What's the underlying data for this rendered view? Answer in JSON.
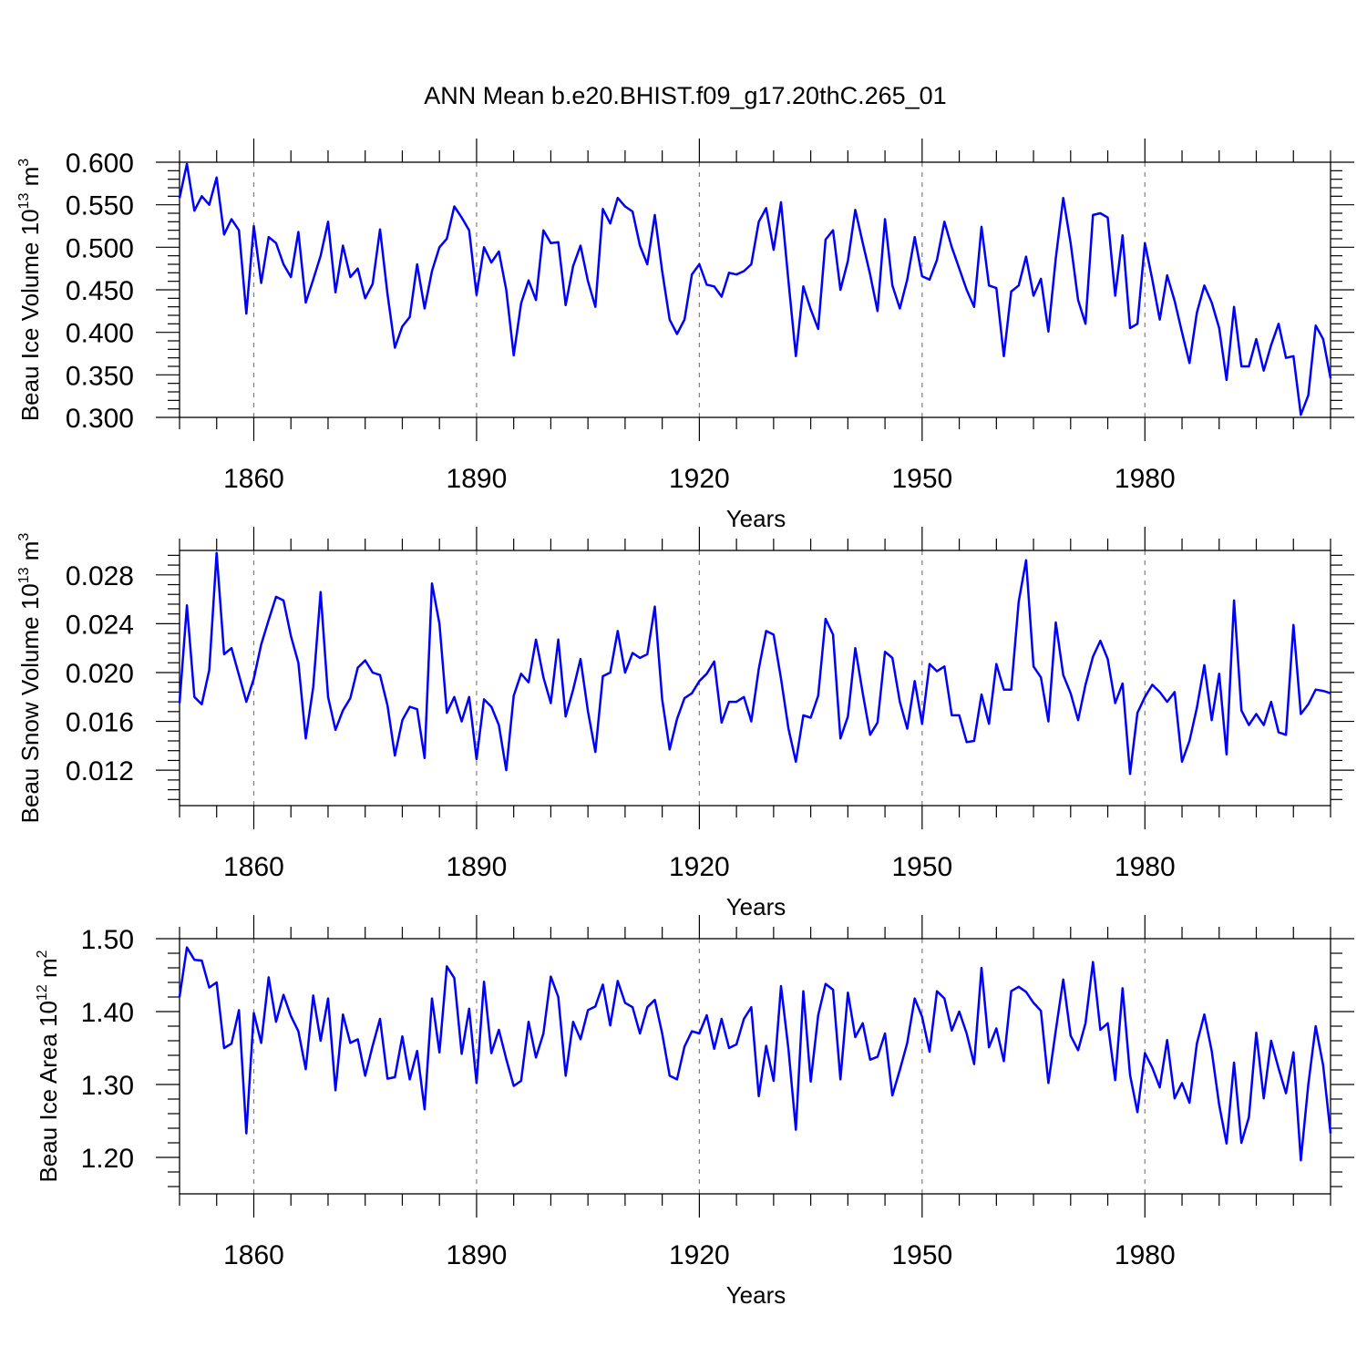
{
  "title": "ANN Mean b.e20.BHIST.f09_g17.20thC.265_01",
  "colors": {
    "series": "#0000ff",
    "axis": "#000000",
    "grid": "#7f7f7f"
  },
  "chart_data": [
    {
      "type": "line",
      "ylabel": "Beau Ice Volume 10",
      "ylabel_exp": "13",
      "ylabel_unit": " m",
      "ylabel_unit_exp": "3",
      "xlabel": "Years",
      "xlim": [
        1850,
        2005
      ],
      "ylim": [
        0.3,
        0.6
      ],
      "xticks": [
        1860,
        1890,
        1920,
        1950,
        1980
      ],
      "xtick_labels": [
        "1860",
        "1890",
        "1920",
        "1950",
        "1980"
      ],
      "yticks": [
        0.3,
        0.35,
        0.4,
        0.45,
        0.5,
        0.55,
        0.6
      ],
      "ytick_labels": [
        "0.300",
        "0.350",
        "0.400",
        "0.450",
        "0.500",
        "0.550",
        "0.600"
      ],
      "x_start": 1850,
      "values": [
        0.558,
        0.598,
        0.543,
        0.56,
        0.55,
        0.582,
        0.515,
        0.533,
        0.52,
        0.422,
        0.525,
        0.458,
        0.512,
        0.505,
        0.48,
        0.465,
        0.518,
        0.435,
        0.462,
        0.49,
        0.53,
        0.447,
        0.502,
        0.465,
        0.475,
        0.44,
        0.457,
        0.521,
        0.445,
        0.382,
        0.407,
        0.418,
        0.48,
        0.428,
        0.472,
        0.5,
        0.51,
        0.548,
        0.535,
        0.52,
        0.444,
        0.5,
        0.482,
        0.495,
        0.45,
        0.373,
        0.434,
        0.461,
        0.438,
        0.52,
        0.505,
        0.506,
        0.432,
        0.478,
        0.502,
        0.46,
        0.43,
        0.545,
        0.528,
        0.558,
        0.548,
        0.542,
        0.502,
        0.48,
        0.538,
        0.472,
        0.415,
        0.398,
        0.415,
        0.468,
        0.48,
        0.456,
        0.454,
        0.442,
        0.47,
        0.468,
        0.472,
        0.48,
        0.53,
        0.546,
        0.497,
        0.553,
        0.46,
        0.372,
        0.454,
        0.427,
        0.404,
        0.509,
        0.52,
        0.45,
        0.484,
        0.544,
        0.505,
        0.468,
        0.425,
        0.533,
        0.455,
        0.428,
        0.462,
        0.512,
        0.466,
        0.462,
        0.485,
        0.53,
        0.5,
        0.475,
        0.45,
        0.43,
        0.524,
        0.455,
        0.452,
        0.372,
        0.448,
        0.455,
        0.489,
        0.443,
        0.463,
        0.401,
        0.487,
        0.558,
        0.505,
        0.438,
        0.41,
        0.538,
        0.54,
        0.535,
        0.443,
        0.514,
        0.405,
        0.41,
        0.505,
        0.462,
        0.415,
        0.467,
        0.437,
        0.4,
        0.364,
        0.423,
        0.455,
        0.435,
        0.405,
        0.344,
        0.43,
        0.36,
        0.36,
        0.392,
        0.355,
        0.385,
        0.41,
        0.37,
        0.372,
        0.303,
        0.326,
        0.408,
        0.392,
        0.346
      ]
    },
    {
      "type": "line",
      "ylabel": "Beau Snow Volume 10",
      "ylabel_exp": "13",
      "ylabel_unit": " m",
      "ylabel_unit_exp": "3",
      "xlabel": "Years",
      "xlim": [
        1850,
        2005
      ],
      "ylim": [
        0.0091,
        0.03
      ],
      "xticks": [
        1860,
        1890,
        1920,
        1950,
        1980
      ],
      "xtick_labels": [
        "1860",
        "1890",
        "1920",
        "1950",
        "1980"
      ],
      "yticks": [
        0.012,
        0.016,
        0.02,
        0.024,
        0.028
      ],
      "ytick_labels": [
        "0.012",
        "0.016",
        "0.020",
        "0.024",
        "0.028"
      ],
      "x_start": 1850,
      "values": [
        0.0175,
        0.0255,
        0.018,
        0.0174,
        0.0202,
        0.0298,
        0.0215,
        0.022,
        0.0198,
        0.0176,
        0.0195,
        0.0223,
        0.0243,
        0.0262,
        0.0259,
        0.023,
        0.0208,
        0.0146,
        0.0188,
        0.0266,
        0.018,
        0.0153,
        0.0169,
        0.0179,
        0.0204,
        0.021,
        0.02,
        0.0198,
        0.0173,
        0.0132,
        0.0161,
        0.0172,
        0.017,
        0.013,
        0.0273,
        0.024,
        0.0167,
        0.018,
        0.016,
        0.018,
        0.0129,
        0.0178,
        0.0172,
        0.0157,
        0.012,
        0.0181,
        0.0199,
        0.0192,
        0.0227,
        0.0196,
        0.0175,
        0.0227,
        0.0164,
        0.0186,
        0.0211,
        0.0168,
        0.0135,
        0.0197,
        0.02,
        0.0234,
        0.02,
        0.0216,
        0.0212,
        0.0215,
        0.0254,
        0.0178,
        0.0137,
        0.0162,
        0.0179,
        0.0183,
        0.0193,
        0.0199,
        0.0209,
        0.0159,
        0.0176,
        0.0176,
        0.018,
        0.016,
        0.0203,
        0.0234,
        0.0231,
        0.0195,
        0.0154,
        0.0127,
        0.0165,
        0.0163,
        0.0181,
        0.0244,
        0.0231,
        0.0146,
        0.0164,
        0.022,
        0.0183,
        0.0149,
        0.0159,
        0.0217,
        0.0212,
        0.0176,
        0.0154,
        0.0193,
        0.0158,
        0.0207,
        0.0201,
        0.0205,
        0.0165,
        0.0165,
        0.0143,
        0.0144,
        0.0182,
        0.0158,
        0.0207,
        0.0186,
        0.0186,
        0.0258,
        0.0292,
        0.0205,
        0.0196,
        0.016,
        0.0241,
        0.0198,
        0.0183,
        0.0161,
        0.019,
        0.0213,
        0.0226,
        0.0211,
        0.0175,
        0.0191,
        0.0117,
        0.0167,
        0.018,
        0.019,
        0.0184,
        0.0176,
        0.0184,
        0.0127,
        0.0144,
        0.0171,
        0.0206,
        0.0161,
        0.0199,
        0.0133,
        0.0259,
        0.0169,
        0.0157,
        0.0166,
        0.0157,
        0.0176,
        0.0151,
        0.0149,
        0.0239,
        0.0166,
        0.0174,
        0.0186,
        0.0185,
        0.0183
      ]
    },
    {
      "type": "line",
      "ylabel": "Beau Ice Area 10",
      "ylabel_exp": "12",
      "ylabel_unit": " m",
      "ylabel_unit_exp": "2",
      "xlabel": "Years",
      "xlim": [
        1850,
        2005
      ],
      "ylim": [
        1.15,
        1.5
      ],
      "xticks": [
        1860,
        1890,
        1920,
        1950,
        1980
      ],
      "xtick_labels": [
        "1860",
        "1890",
        "1920",
        "1950",
        "1980"
      ],
      "yticks": [
        1.2,
        1.3,
        1.4,
        1.5
      ],
      "ytick_labels": [
        "1.20",
        "1.30",
        "1.40",
        "1.50"
      ],
      "x_start": 1850,
      "values": [
        1.42,
        1.488,
        1.471,
        1.47,
        1.433,
        1.44,
        1.35,
        1.356,
        1.402,
        1.233,
        1.398,
        1.357,
        1.447,
        1.386,
        1.423,
        1.394,
        1.373,
        1.321,
        1.422,
        1.36,
        1.418,
        1.292,
        1.396,
        1.357,
        1.362,
        1.312,
        1.353,
        1.39,
        1.308,
        1.31,
        1.366,
        1.307,
        1.346,
        1.266,
        1.418,
        1.344,
        1.462,
        1.446,
        1.342,
        1.404,
        1.302,
        1.441,
        1.343,
        1.375,
        1.335,
        1.298,
        1.305,
        1.386,
        1.337,
        1.37,
        1.448,
        1.42,
        1.312,
        1.386,
        1.362,
        1.402,
        1.407,
        1.437,
        1.381,
        1.442,
        1.412,
        1.406,
        1.37,
        1.406,
        1.416,
        1.37,
        1.312,
        1.307,
        1.352,
        1.373,
        1.37,
        1.395,
        1.349,
        1.39,
        1.35,
        1.355,
        1.39,
        1.406,
        1.284,
        1.353,
        1.305,
        1.435,
        1.348,
        1.238,
        1.428,
        1.304,
        1.395,
        1.438,
        1.43,
        1.307,
        1.426,
        1.365,
        1.384,
        1.334,
        1.338,
        1.37,
        1.285,
        1.32,
        1.357,
        1.418,
        1.393,
        1.345,
        1.428,
        1.418,
        1.374,
        1.4,
        1.37,
        1.328,
        1.46,
        1.351,
        1.377,
        1.332,
        1.428,
        1.434,
        1.427,
        1.412,
        1.401,
        1.302,
        1.374,
        1.444,
        1.367,
        1.347,
        1.384,
        1.468,
        1.375,
        1.384,
        1.306,
        1.432,
        1.313,
        1.262,
        1.343,
        1.323,
        1.296,
        1.361,
        1.281,
        1.302,
        1.275,
        1.356,
        1.396,
        1.346,
        1.272,
        1.219,
        1.33,
        1.22,
        1.255,
        1.371,
        1.281,
        1.36,
        1.322,
        1.288,
        1.344,
        1.196,
        1.3,
        1.38,
        1.326,
        1.233
      ]
    }
  ]
}
